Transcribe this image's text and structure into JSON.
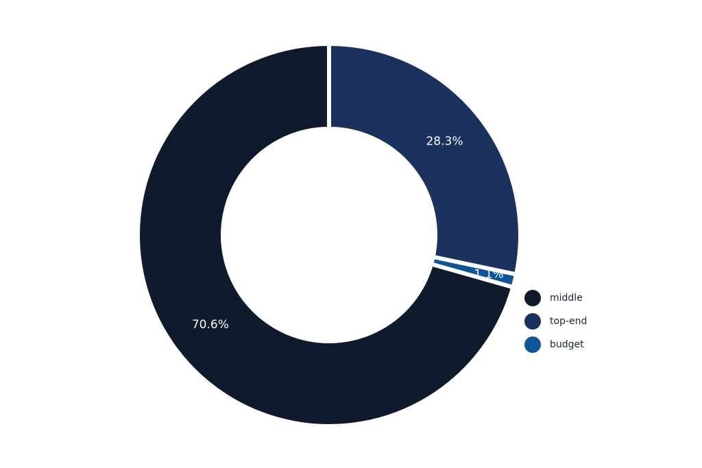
{
  "chart_data": {
    "type": "pie",
    "categories": [
      "middle",
      "top-end",
      "budget"
    ],
    "values": [
      70.6,
      28.3,
      1.1
    ],
    "value_labels": [
      "70.6%",
      "28.3%",
      "1.1%"
    ],
    "colors": [
      "#0f1a2d",
      "#1b315e",
      "#0d5499"
    ],
    "legend": "right"
  }
}
